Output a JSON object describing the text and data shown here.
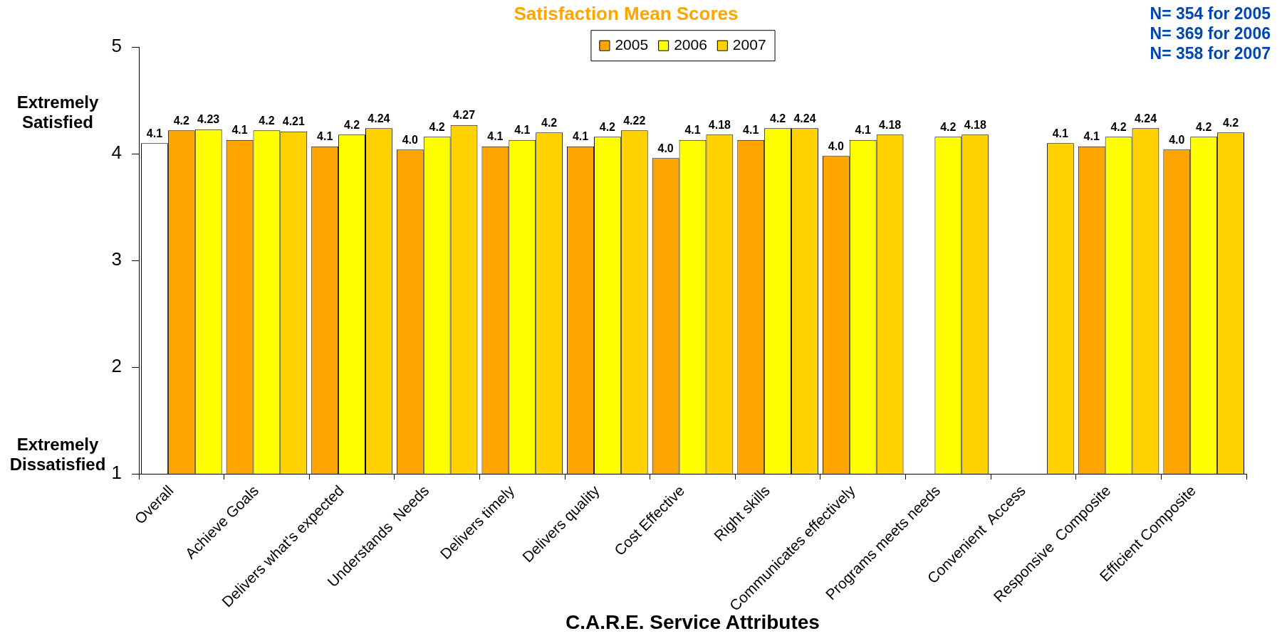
{
  "chart_data": {
    "type": "bar",
    "title": "Satisfaction Mean Scores",
    "xlabel": "C.A.R.E. Service Attributes",
    "categories": [
      "Overall",
      "Achieve Goals",
      "Delivers what's expected",
      "Understands  Needs",
      "Delivers timely",
      "Delivers quality",
      "Cost Effective",
      "Right skills",
      "Communicates effectively",
      "Programs meets needs",
      "Convenient  Access",
      "Responsive  Composite",
      "Efficient Composite"
    ],
    "series": [
      {
        "name": "2005",
        "color": "#ffa500",
        "colors": [
          "#ffffff",
          "#ffa500",
          "#ffa500",
          "#ffa500",
          "#ffa500",
          "#ffa500",
          "#ffa500",
          "#ffa500",
          "#ffa500",
          "#ffa500",
          "#ffa500",
          "#ffa500",
          "#ffa500"
        ],
        "values": [
          4.1,
          4.13,
          4.07,
          4.04,
          4.07,
          4.07,
          3.96,
          4.13,
          3.98,
          null,
          null,
          4.07,
          4.04
        ],
        "value_labels": [
          "4.1",
          "4.1",
          "4.1",
          "4.0",
          "4.1",
          "4.1",
          "4.0",
          "4.1",
          "4.0",
          null,
          null,
          "4.1",
          "4.0"
        ]
      },
      {
        "name": "2006",
        "color": "#ffff00",
        "colors": [
          "#ffa500",
          "#ffff00",
          "#ffff00",
          "#ffff00",
          "#ffff00",
          "#ffff00",
          "#ffff00",
          "#ffff00",
          "#ffff00",
          "#ffff00",
          "#ffff00",
          "#ffff00",
          "#ffff00"
        ],
        "values": [
          4.22,
          4.22,
          4.18,
          4.16,
          4.13,
          4.16,
          4.13,
          4.24,
          4.13,
          4.16,
          null,
          4.16,
          4.16
        ],
        "value_labels": [
          "4.2",
          "4.2",
          "4.2",
          "4.2",
          "4.1",
          "4.2",
          "4.1",
          "4.2",
          "4.1",
          "4.2",
          null,
          "4.2",
          "4.2"
        ]
      },
      {
        "name": "2007",
        "color": "#ffd200",
        "colors": [
          "#ffff00",
          "#ffd200",
          "#ffd200",
          "#ffd200",
          "#ffd200",
          "#ffd200",
          "#ffd200",
          "#ffd200",
          "#ffd200",
          "#ffd200",
          "#ffd200",
          "#ffd200",
          "#ffd200"
        ],
        "values": [
          4.23,
          4.21,
          4.24,
          4.27,
          4.2,
          4.22,
          4.18,
          4.24,
          4.18,
          4.18,
          4.1,
          4.24,
          4.2
        ],
        "value_labels": [
          "4.23",
          "4.21",
          "4.24",
          "4.27",
          "4.2",
          "4.22",
          "4.18",
          "4.24",
          "4.18",
          "4.18",
          "4.1",
          "4.24",
          "4.2"
        ]
      }
    ],
    "ylim": [
      1,
      5
    ],
    "yticks": [
      1,
      2,
      3,
      4,
      5
    ],
    "grid": false,
    "legend": "top",
    "annotations": [
      "Extremely Satisfied",
      "Extremely Dissatisfied",
      "N= 354 for 2005",
      "N= 369 for 2006",
      "N= 358 for 2007"
    ]
  }
}
